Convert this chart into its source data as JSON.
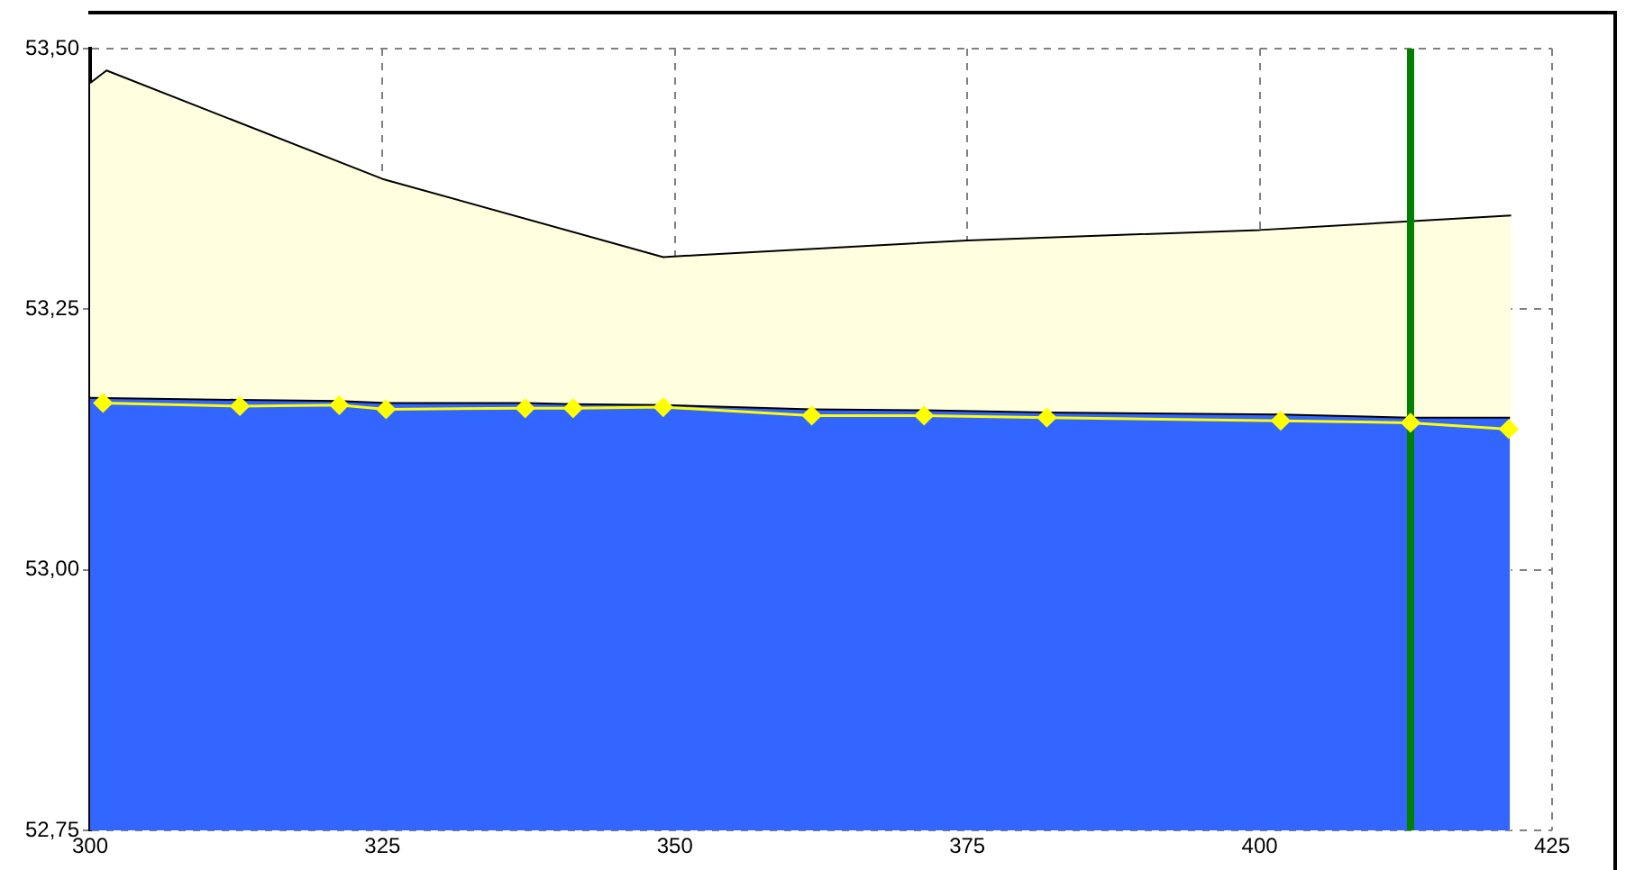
{
  "chart_data": {
    "type": "area",
    "xlim": [
      300,
      425
    ],
    "xticks": [
      300,
      325,
      350,
      375,
      400,
      425
    ],
    "ylim": [
      52.75,
      53.5
    ],
    "yticks": [
      {
        "value": 52.75,
        "label": "52,75"
      },
      {
        "value": 53.0,
        "label": "53,00"
      },
      {
        "value": 53.25,
        "label": "53,25"
      },
      {
        "value": 53.5,
        "label": "53,50"
      }
    ],
    "grid": true,
    "legend": false,
    "series": [
      {
        "color": "#ffffe0",
        "x": [
          300,
          301.4,
          325,
          349,
          352,
          375,
          400,
          421.5
        ],
        "values": [
          53.467,
          53.479,
          53.375,
          53.3,
          53.302,
          53.316,
          53.326,
          53.34
        ]
      },
      {
        "color": "#3366ff",
        "x": [
          300,
          312.8,
          321.3,
          325.3,
          337.2,
          341.3,
          349,
          361.7,
          371.3,
          381.8,
          401.8,
          412.9,
          421.4
        ],
        "values": [
          53.165,
          53.163,
          53.162,
          53.16,
          53.16,
          53.159,
          53.158,
          53.154,
          53.153,
          53.151,
          53.149,
          53.146,
          53.146
        ]
      },
      {
        "type": "line",
        "color": "#ffff00",
        "marker": "diamond",
        "x": [
          301.1,
          312.8,
          321.3,
          325.3,
          337.2,
          341.3,
          349,
          361.7,
          371.3,
          381.8,
          401.8,
          412.9,
          421.3
        ],
        "values": [
          53.16,
          53.157,
          53.158,
          53.154,
          53.155,
          53.155,
          53.156,
          53.148,
          53.148,
          53.146,
          53.143,
          53.141,
          53.135
        ]
      }
    ],
    "ref_lines": [
      {
        "axis": "x",
        "value": 412.9,
        "color": "#008000"
      }
    ]
  }
}
